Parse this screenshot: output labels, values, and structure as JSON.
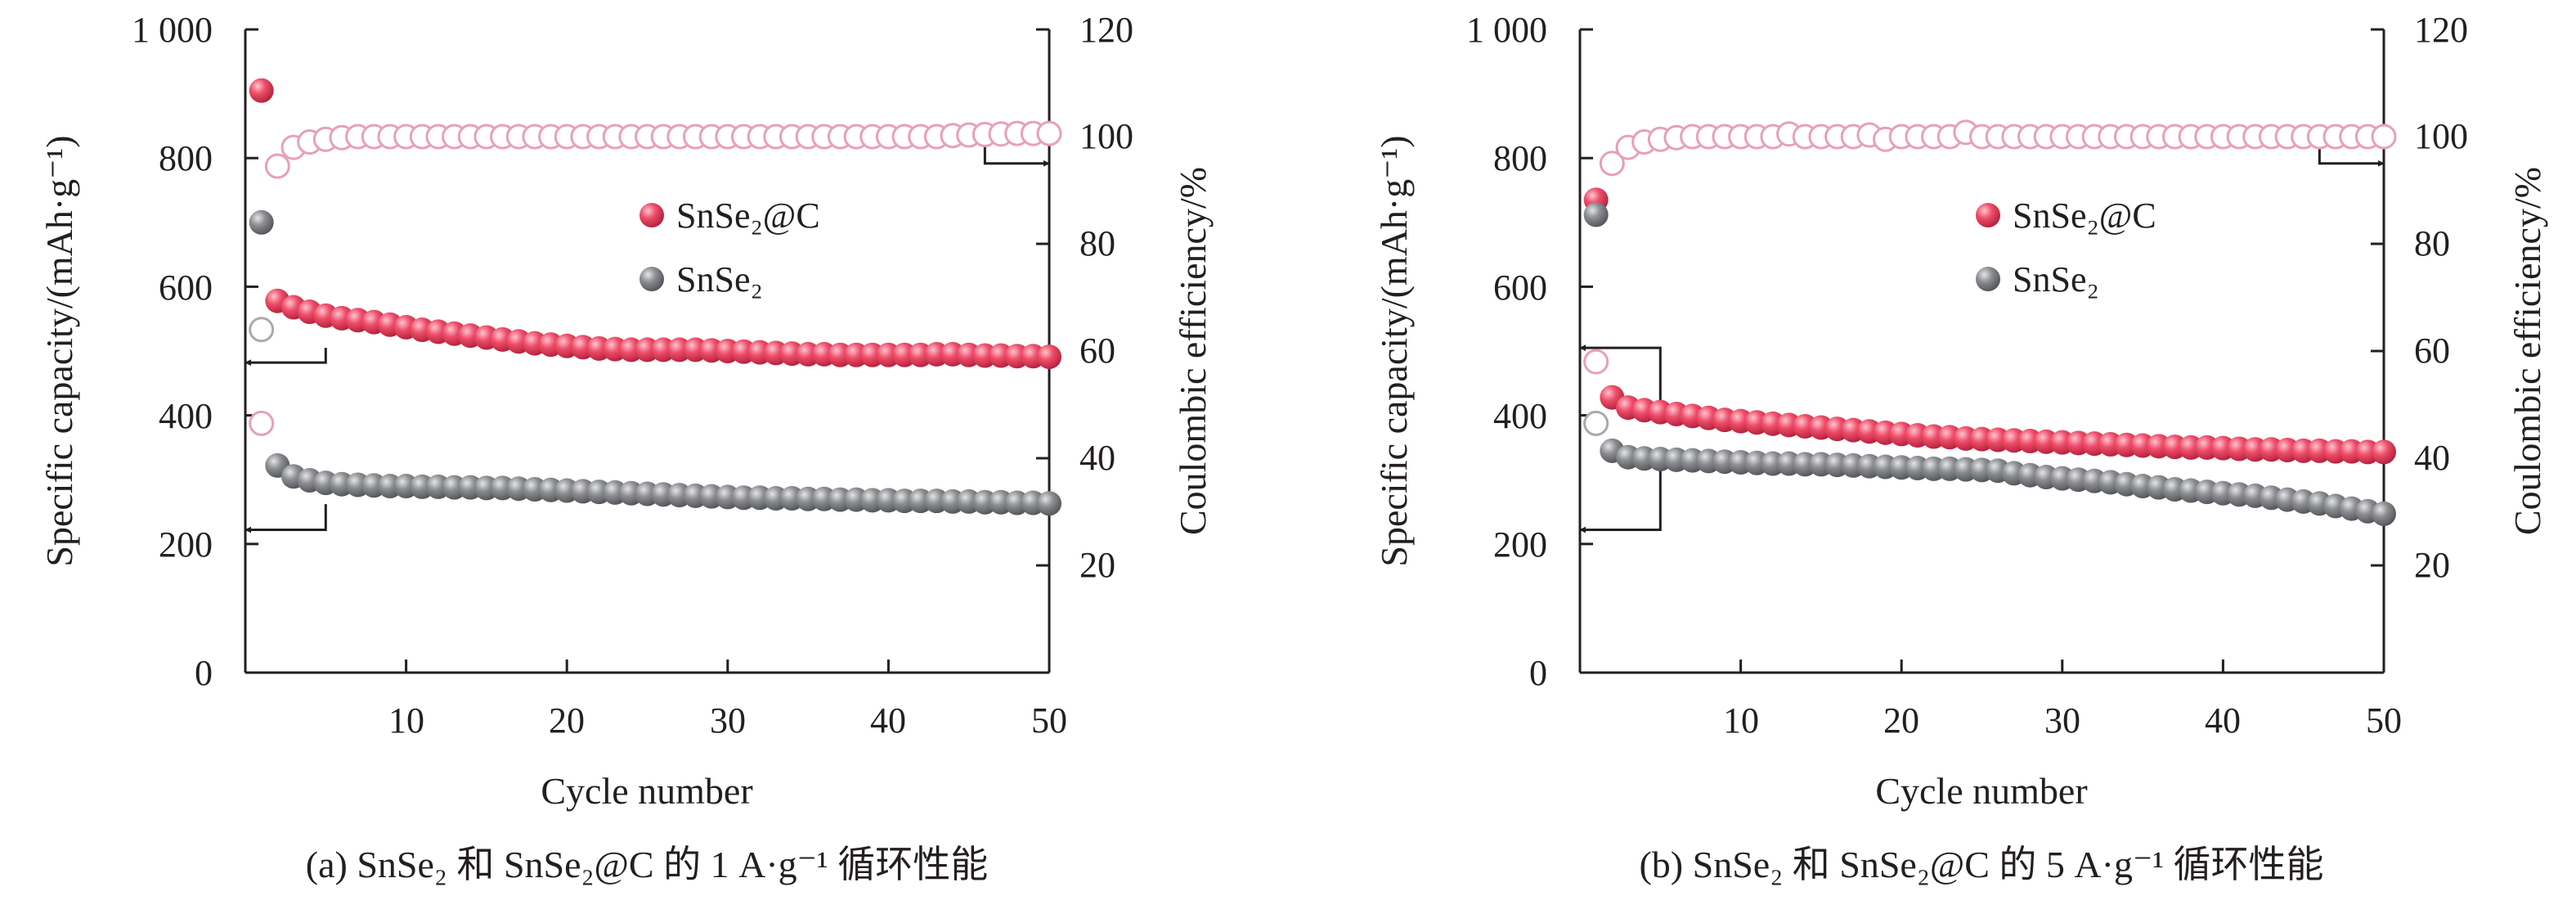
{
  "colors": {
    "snse2c": "#e8405c",
    "snse2c_ce": "#e8a0b6",
    "snse2": "#8a8b8f",
    "snse2_ce": "#a9aaad",
    "axis": "#231f20"
  },
  "chart_data": [
    {
      "type": "scatter",
      "panel": "a",
      "caption": "(a) SnSe₂ 和 SnSe₂@C 的 1 A·g⁻¹ 循环性能",
      "xlabel": "Cycle number",
      "ylabel_left": "Specific capacity/(mAh·g⁻¹)",
      "ylabel_right": "Coulombic efficiency/%",
      "xlim": [
        0,
        50
      ],
      "ylim_left": [
        0,
        1000
      ],
      "ylim_right": [
        0,
        120
      ],
      "xticks": [
        10,
        20,
        30,
        40,
        50
      ],
      "xtick_labels": [
        "10",
        "20",
        "30",
        "40",
        "50"
      ],
      "yticks_left": [
        0,
        200,
        400,
        600,
        800,
        1000
      ],
      "ytick_labels_left": [
        "0",
        "200",
        "400",
        "600",
        "800",
        "1 000"
      ],
      "yticks_right": [
        20,
        40,
        60,
        80,
        100,
        120
      ],
      "ytick_labels_right": [
        "20",
        "40",
        "60",
        "80",
        "100",
        "120"
      ],
      "legend": {
        "placement": "center-right",
        "entries": [
          "SnSe₂@C",
          "SnSe₂"
        ]
      },
      "series": [
        {
          "name": "SnSe₂@C",
          "kind": "capacity",
          "axis": "left",
          "x": [
            1,
            2,
            3,
            4,
            5,
            6,
            7,
            8,
            9,
            10,
            11,
            12,
            13,
            14,
            15,
            16,
            17,
            18,
            19,
            20,
            21,
            22,
            23,
            24,
            25,
            26,
            27,
            28,
            29,
            30,
            31,
            32,
            33,
            34,
            35,
            36,
            37,
            38,
            39,
            40,
            41,
            42,
            43,
            44,
            45,
            46,
            47,
            48,
            49,
            50
          ],
          "values": [
            905,
            578,
            568,
            561,
            555,
            551,
            548,
            545,
            541,
            537,
            533,
            530,
            527,
            524,
            521,
            518,
            515,
            512,
            510,
            508,
            506,
            504,
            503,
            502,
            502,
            502,
            502,
            502,
            501,
            500,
            499,
            498,
            497,
            496,
            495,
            495,
            494,
            494,
            494,
            494,
            494,
            494,
            495,
            495,
            494,
            493,
            493,
            492,
            492,
            491
          ]
        },
        {
          "name": "SnSe₂",
          "kind": "capacity",
          "axis": "left",
          "x": [
            1,
            2,
            3,
            4,
            5,
            6,
            7,
            8,
            9,
            10,
            11,
            12,
            13,
            14,
            15,
            16,
            17,
            18,
            19,
            20,
            21,
            22,
            23,
            24,
            25,
            26,
            27,
            28,
            29,
            30,
            31,
            32,
            33,
            34,
            35,
            36,
            37,
            38,
            39,
            40,
            41,
            42,
            43,
            44,
            45,
            46,
            47,
            48,
            49,
            50
          ],
          "values": [
            700,
            322,
            305,
            299,
            295,
            293,
            292,
            291,
            290,
            290,
            289,
            289,
            288,
            288,
            287,
            287,
            286,
            285,
            284,
            283,
            282,
            281,
            280,
            279,
            278,
            277,
            276,
            275,
            274,
            273,
            272,
            272,
            271,
            271,
            270,
            270,
            269,
            269,
            268,
            268,
            267,
            267,
            267,
            266,
            266,
            265,
            265,
            264,
            264,
            263
          ]
        },
        {
          "name": "SnSe₂@C Coulombic efficiency",
          "kind": "efficiency",
          "axis": "right",
          "x": [
            1,
            2,
            3,
            4,
            5,
            6,
            7,
            8,
            9,
            10,
            11,
            12,
            13,
            14,
            15,
            16,
            17,
            18,
            19,
            20,
            21,
            22,
            23,
            24,
            25,
            26,
            27,
            28,
            29,
            30,
            31,
            32,
            33,
            34,
            35,
            36,
            37,
            38,
            39,
            40,
            41,
            42,
            43,
            44,
            45,
            46,
            47,
            48,
            49,
            50
          ],
          "values": [
            46.5,
            94.5,
            98,
            99,
            99.5,
            99.8,
            100,
            100,
            100,
            100,
            100,
            100,
            100,
            100,
            100,
            100,
            100,
            100,
            100,
            100,
            100,
            100,
            100,
            100,
            100,
            100,
            100,
            100,
            100,
            100,
            100,
            100,
            100,
            100,
            100,
            100,
            100,
            100,
            100,
            100,
            100,
            100,
            100,
            100.2,
            100.3,
            100.4,
            100.5,
            100.6,
            100.6,
            100.6
          ]
        },
        {
          "name": "SnSe₂ Coulombic efficiency",
          "kind": "efficiency",
          "axis": "right",
          "x": [
            1
          ],
          "values": [
            64
          ]
        }
      ],
      "arrows": [
        {
          "target_axis": "right",
          "from": [
            46,
            99
          ],
          "corner": [
            46,
            95
          ],
          "to": [
            50,
            95
          ]
        },
        {
          "target_axis": "left",
          "from": [
            5,
            505
          ],
          "corner": [
            5,
            482
          ],
          "to": [
            0,
            482
          ]
        },
        {
          "target_axis": "left",
          "from": [
            5,
            262
          ],
          "corner": [
            5,
            222
          ],
          "to": [
            0,
            222
          ]
        }
      ]
    },
    {
      "type": "scatter",
      "panel": "b",
      "caption": "(b) SnSe₂ 和 SnSe₂@C 的 5 A·g⁻¹ 循环性能",
      "xlabel": "Cycle number",
      "ylabel_left": "Specific capacity/(mAh·g⁻¹)",
      "ylabel_right": "Coulombic efficiency/%",
      "xlim": [
        0,
        50
      ],
      "ylim_left": [
        0,
        1000
      ],
      "ylim_right": [
        0,
        120
      ],
      "xticks": [
        10,
        20,
        30,
        40,
        50
      ],
      "xtick_labels": [
        "10",
        "20",
        "30",
        "40",
        "50"
      ],
      "yticks_left": [
        0,
        200,
        400,
        600,
        800,
        1000
      ],
      "ytick_labels_left": [
        "0",
        "200",
        "400",
        "600",
        "800",
        "1 000"
      ],
      "yticks_right": [
        20,
        40,
        60,
        80,
        100,
        120
      ],
      "ytick_labels_right": [
        "20",
        "40",
        "60",
        "80",
        "100",
        "120"
      ],
      "legend": {
        "placement": "center-right",
        "entries": [
          "SnSe₂@C",
          "SnSe₂"
        ]
      },
      "series": [
        {
          "name": "SnSe₂@C",
          "kind": "capacity",
          "axis": "left",
          "x": [
            1,
            2,
            3,
            4,
            5,
            6,
            7,
            8,
            9,
            10,
            11,
            12,
            13,
            14,
            15,
            16,
            17,
            18,
            19,
            20,
            21,
            22,
            23,
            24,
            25,
            26,
            27,
            28,
            29,
            30,
            31,
            32,
            33,
            34,
            35,
            36,
            37,
            38,
            39,
            40,
            41,
            42,
            43,
            44,
            45,
            46,
            47,
            48,
            49,
            50
          ],
          "values": [
            735,
            428,
            412,
            408,
            405,
            402,
            399,
            396,
            393,
            391,
            389,
            387,
            385,
            383,
            381,
            379,
            377,
            375,
            373,
            371,
            369,
            367,
            366,
            364,
            363,
            362,
            361,
            360,
            359,
            358,
            357,
            356,
            355,
            354,
            353,
            352,
            351,
            350,
            350,
            349,
            348,
            347,
            347,
            346,
            345,
            345,
            344,
            344,
            343,
            343
          ]
        },
        {
          "name": "SnSe₂",
          "kind": "capacity",
          "axis": "left",
          "x": [
            1,
            2,
            3,
            4,
            5,
            6,
            7,
            8,
            9,
            10,
            11,
            12,
            13,
            14,
            15,
            16,
            17,
            18,
            19,
            20,
            21,
            22,
            23,
            24,
            25,
            26,
            27,
            28,
            29,
            30,
            31,
            32,
            33,
            34,
            35,
            36,
            37,
            38,
            39,
            40,
            41,
            42,
            43,
            44,
            45,
            46,
            47,
            48,
            49,
            50
          ],
          "values": [
            712,
            345,
            335,
            333,
            332,
            331,
            330,
            329,
            328,
            327,
            326,
            325,
            325,
            324,
            324,
            323,
            322,
            321,
            320,
            319,
            318,
            317,
            317,
            316,
            315,
            314,
            310,
            307,
            304,
            302,
            300,
            298,
            296,
            293,
            290,
            288,
            285,
            283,
            281,
            279,
            277,
            275,
            272,
            269,
            266,
            263,
            259,
            255,
            251,
            247
          ]
        },
        {
          "name": "SnSe₂@C Coulombic efficiency",
          "kind": "efficiency",
          "axis": "right",
          "x": [
            1,
            2,
            3,
            4,
            5,
            6,
            7,
            8,
            9,
            10,
            11,
            12,
            13,
            14,
            15,
            16,
            17,
            18,
            19,
            20,
            21,
            22,
            23,
            24,
            25,
            26,
            27,
            28,
            29,
            30,
            31,
            32,
            33,
            34,
            35,
            36,
            37,
            38,
            39,
            40,
            41,
            42,
            43,
            44,
            45,
            46,
            47,
            48,
            49,
            50
          ],
          "values": [
            58,
            95,
            98,
            99,
            99.5,
            99.8,
            100,
            100,
            100,
            100,
            100,
            100,
            100.5,
            100,
            100,
            100,
            100,
            100.3,
            99.5,
            100,
            100,
            100,
            100,
            100.8,
            100,
            100,
            100,
            100,
            100,
            100,
            100,
            100,
            100,
            100,
            100,
            100,
            100,
            100,
            100,
            100,
            100,
            100,
            100,
            100,
            100,
            100,
            100,
            100,
            100,
            100
          ]
        },
        {
          "name": "SnSe₂ Coulombic efficiency",
          "kind": "efficiency",
          "axis": "right",
          "x": [
            1
          ],
          "values": [
            46.5
          ]
        }
      ],
      "arrows": [
        {
          "target_axis": "right",
          "from": [
            46,
            99
          ],
          "corner": [
            46,
            95
          ],
          "to": [
            50,
            95
          ]
        },
        {
          "target_axis": "left",
          "from": [
            5,
            400
          ],
          "corner": [
            5,
            505
          ],
          "to": [
            0,
            505
          ]
        },
        {
          "target_axis": "left",
          "from": [
            5,
            345
          ],
          "corner": [
            5,
            222
          ],
          "to": [
            0,
            222
          ]
        }
      ]
    }
  ]
}
